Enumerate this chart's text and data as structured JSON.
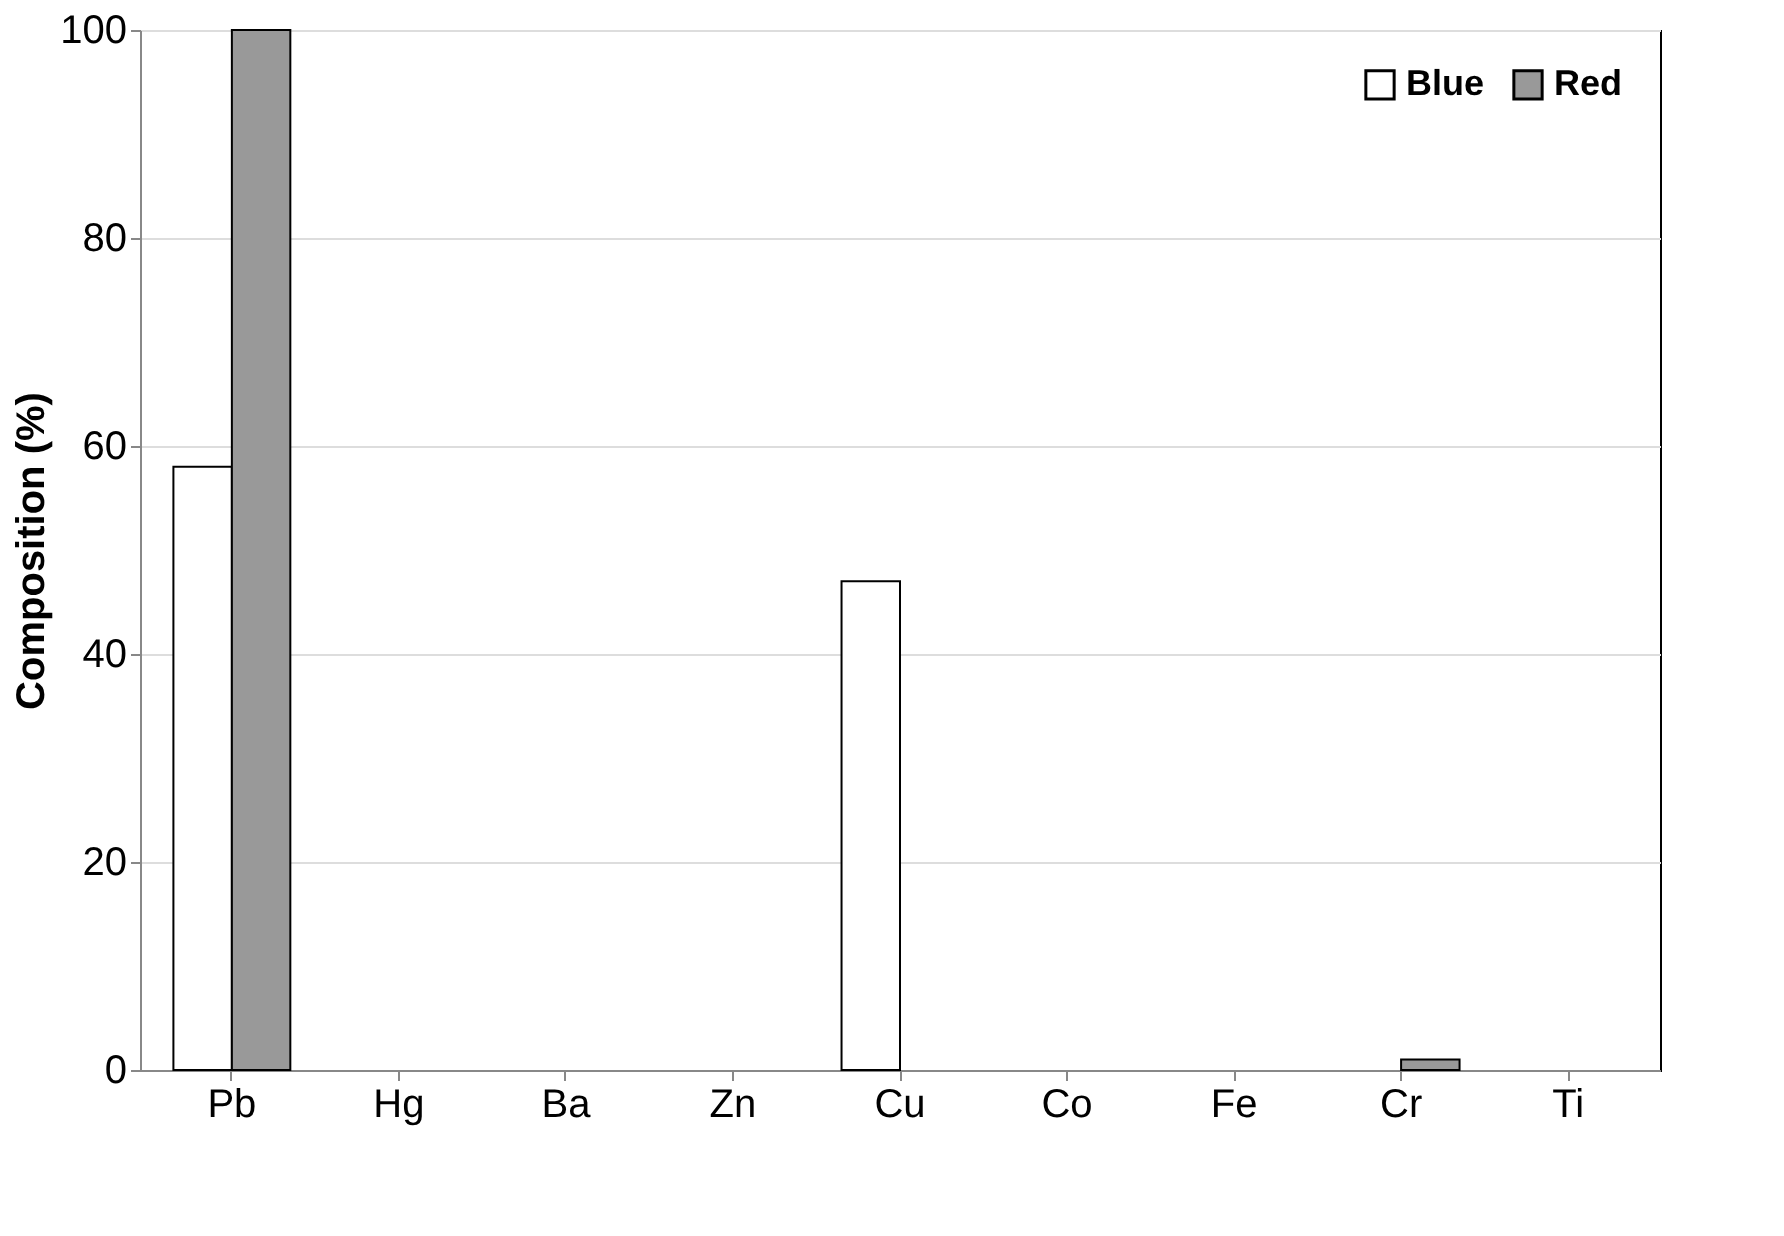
{
  "chart_data": {
    "type": "bar",
    "ylabel": "Composition (%)",
    "categories": [
      "Pb",
      "Hg",
      "Ba",
      "Zn",
      "Cu",
      "Co",
      "Fe",
      "Cr",
      "Ti"
    ],
    "series": [
      {
        "name": "Blue",
        "color": "#ffffff",
        "values": [
          58,
          0,
          0,
          0,
          47,
          0,
          0,
          0,
          0
        ]
      },
      {
        "name": "Red",
        "color": "#999999",
        "values": [
          100,
          0,
          0,
          0,
          0,
          0,
          0,
          1,
          0
        ]
      }
    ],
    "ylim": [
      0,
      100
    ],
    "yticks": [
      0,
      20,
      40,
      60,
      80,
      100
    ],
    "grid": "y",
    "legend": "top right"
  }
}
